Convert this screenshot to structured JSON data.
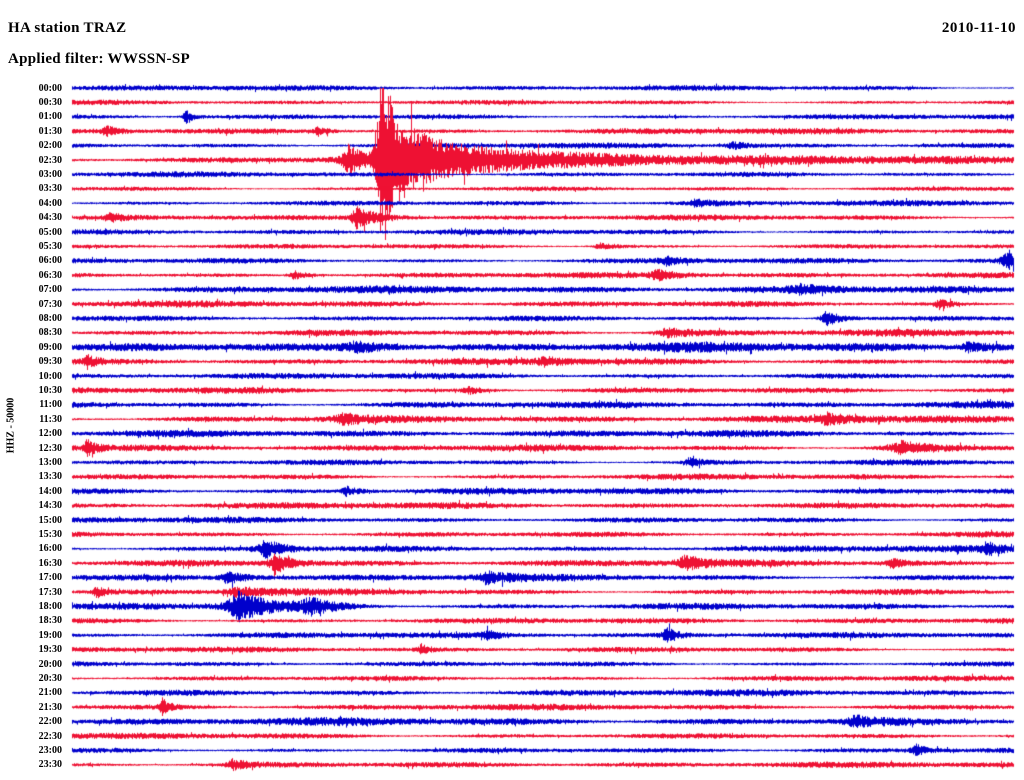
{
  "header": {
    "station_line": "HA station TRAZ",
    "filter_line": "Applied filter: WWSSN-SP",
    "date": "2010-11-10"
  },
  "axis": {
    "scale_label": "HHZ - 50000"
  },
  "chart_data": {
    "type": "line",
    "subtype": "helicorder",
    "title": "HA station TRAZ",
    "date": "2010-11-10",
    "filter": "WWSSN-SP",
    "channel": "HHZ",
    "scale": 50000,
    "rows": 48,
    "minutes_per_row": 30,
    "colors": {
      "even": "#0000cc",
      "odd": "#ee1133"
    },
    "row_times": [
      "00:00",
      "00:30",
      "01:00",
      "01:30",
      "02:00",
      "02:30",
      "03:00",
      "03:30",
      "04:00",
      "04:30",
      "05:00",
      "05:30",
      "06:00",
      "06:30",
      "07:00",
      "07:30",
      "08:00",
      "08:30",
      "09:00",
      "09:30",
      "10:00",
      "10:30",
      "11:00",
      "11:30",
      "12:00",
      "12:30",
      "13:00",
      "13:30",
      "14:00",
      "14:30",
      "15:00",
      "15:30",
      "16:00",
      "16:30",
      "17:00",
      "17:30",
      "18:00",
      "18:30",
      "19:00",
      "19:30",
      "20:00",
      "20:30",
      "21:00",
      "21:30",
      "22:00",
      "22:30",
      "23:00",
      "23:30"
    ],
    "base_noise": [
      2.2,
      2.0,
      2.2,
      2.5,
      2.2,
      2.5,
      2.2,
      2.0,
      2.2,
      2.2,
      2.2,
      2.0,
      2.4,
      2.4,
      3.0,
      2.6,
      2.4,
      2.8,
      3.8,
      2.6,
      2.4,
      2.6,
      3.0,
      3.0,
      2.8,
      2.8,
      2.4,
      2.4,
      2.6,
      2.6,
      2.4,
      2.4,
      2.6,
      2.8,
      2.8,
      2.6,
      2.8,
      2.4,
      2.4,
      2.2,
      2.2,
      2.2,
      2.6,
      2.4,
      3.2,
      2.4,
      2.2,
      2.4
    ],
    "events": [
      {
        "r": 2,
        "x": 0.12,
        "a": 6,
        "att": 2,
        "dec": 8
      },
      {
        "r": 3,
        "x": 0.035,
        "a": 4,
        "att": 3,
        "dec": 12
      },
      {
        "r": 3,
        "x": 0.26,
        "a": 4,
        "att": 3,
        "dec": 10
      },
      {
        "r": 4,
        "x": 0.7,
        "a": 3,
        "att": 4,
        "dec": 15
      },
      {
        "r": 5,
        "x": 0.293,
        "a": 11,
        "att": 5,
        "dec": 14
      },
      {
        "r": 5,
        "x": 0.327,
        "a": 78,
        "att": 2.5,
        "dec": 10
      },
      {
        "r": 5,
        "x": 0.335,
        "a": 22,
        "att": 6,
        "dec": 60
      },
      {
        "r": 5,
        "x": 0.36,
        "a": 7,
        "att": 20,
        "dec": 300
      },
      {
        "r": 8,
        "x": 0.66,
        "a": 3,
        "att": 4,
        "dec": 18
      },
      {
        "r": 9,
        "x": 0.04,
        "a": 4,
        "att": 3,
        "dec": 10
      },
      {
        "r": 9,
        "x": 0.3,
        "a": 9,
        "att": 3,
        "dec": 22
      },
      {
        "r": 11,
        "x": 0.56,
        "a": 3,
        "att": 4,
        "dec": 14
      },
      {
        "r": 12,
        "x": 0.63,
        "a": 3,
        "att": 5,
        "dec": 16
      },
      {
        "r": 12,
        "x": 0.993,
        "a": 9,
        "att": 4,
        "dec": 8
      },
      {
        "r": 13,
        "x": 0.235,
        "a": 4,
        "att": 4,
        "dec": 14
      },
      {
        "r": 13,
        "x": 0.62,
        "a": 4,
        "att": 5,
        "dec": 20
      },
      {
        "r": 14,
        "x": 0.77,
        "a": 3,
        "att": 6,
        "dec": 30
      },
      {
        "r": 15,
        "x": 0.92,
        "a": 4,
        "att": 3,
        "dec": 10
      },
      {
        "r": 16,
        "x": 0.8,
        "a": 7,
        "att": 4,
        "dec": 15
      },
      {
        "r": 17,
        "x": 0.63,
        "a": 4,
        "att": 5,
        "dec": 25
      },
      {
        "r": 18,
        "x": 0.3,
        "a": 4,
        "att": 8,
        "dec": 40
      },
      {
        "r": 18,
        "x": 0.95,
        "a": 4,
        "att": 6,
        "dec": 30
      },
      {
        "r": 19,
        "x": 0.015,
        "a": 5,
        "att": 2,
        "dec": 8
      },
      {
        "r": 19,
        "x": 0.5,
        "a": 3,
        "att": 5,
        "dec": 20
      },
      {
        "r": 21,
        "x": 0.42,
        "a": 3,
        "att": 4,
        "dec": 15
      },
      {
        "r": 23,
        "x": 0.285,
        "a": 5,
        "att": 4,
        "dec": 15
      },
      {
        "r": 23,
        "x": 0.8,
        "a": 4,
        "att": 5,
        "dec": 20
      },
      {
        "r": 25,
        "x": 0.015,
        "a": 6,
        "att": 2,
        "dec": 10
      },
      {
        "r": 25,
        "x": 0.88,
        "a": 5,
        "att": 10,
        "dec": 30
      },
      {
        "r": 26,
        "x": 0.655,
        "a": 4,
        "att": 3,
        "dec": 12
      },
      {
        "r": 28,
        "x": 0.29,
        "a": 4,
        "att": 3,
        "dec": 12
      },
      {
        "r": 32,
        "x": 0.205,
        "a": 8,
        "att": 6,
        "dec": 18
      },
      {
        "r": 32,
        "x": 0.97,
        "a": 5,
        "att": 4,
        "dec": 15
      },
      {
        "r": 33,
        "x": 0.215,
        "a": 9,
        "att": 4,
        "dec": 14
      },
      {
        "r": 33,
        "x": 0.65,
        "a": 6,
        "att": 5,
        "dec": 15
      },
      {
        "r": 33,
        "x": 0.87,
        "a": 4,
        "att": 4,
        "dec": 12
      },
      {
        "r": 34,
        "x": 0.165,
        "a": 5,
        "att": 5,
        "dec": 20
      },
      {
        "r": 34,
        "x": 0.44,
        "a": 4,
        "att": 5,
        "dec": 20
      },
      {
        "r": 35,
        "x": 0.025,
        "a": 5,
        "att": 2,
        "dec": 8
      },
      {
        "r": 35,
        "x": 0.175,
        "a": 4,
        "att": 8,
        "dec": 30
      },
      {
        "r": 36,
        "x": 0.175,
        "a": 12,
        "att": 8,
        "dec": 30
      },
      {
        "r": 36,
        "x": 0.25,
        "a": 6,
        "att": 5,
        "dec": 25
      },
      {
        "r": 38,
        "x": 0.44,
        "a": 3,
        "att": 4,
        "dec": 15
      },
      {
        "r": 38,
        "x": 0.63,
        "a": 6,
        "att": 3,
        "dec": 10
      },
      {
        "r": 39,
        "x": 0.37,
        "a": 4,
        "att": 2,
        "dec": 8
      },
      {
        "r": 43,
        "x": 0.095,
        "a": 7,
        "att": 2,
        "dec": 8
      },
      {
        "r": 44,
        "x": 0.83,
        "a": 4,
        "att": 5,
        "dec": 20
      },
      {
        "r": 46,
        "x": 0.895,
        "a": 5,
        "att": 3,
        "dec": 10
      },
      {
        "r": 47,
        "x": 0.17,
        "a": 4,
        "att": 4,
        "dec": 15
      }
    ]
  }
}
